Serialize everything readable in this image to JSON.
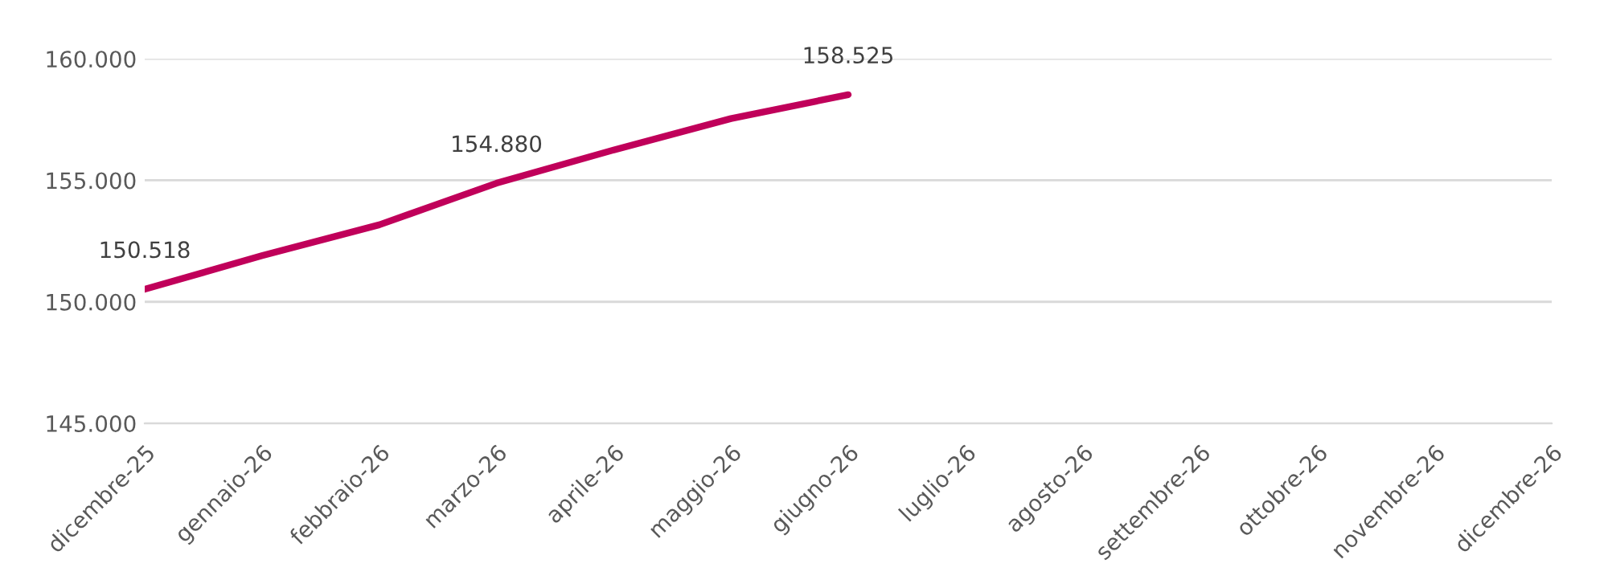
{
  "chart_data": {
    "type": "line",
    "categories": [
      "dicembre-25",
      "gennaio-26",
      "febbraio-26",
      "marzo-26",
      "aprile-26",
      "maggio-26",
      "giugno-26",
      "luglio-26",
      "agosto-26",
      "settembre-26",
      "ottobre-26",
      "novembre-26",
      "dicembre-26"
    ],
    "series": [
      {
        "color": "#c0005a",
        "values": [
          150518,
          151900,
          153170,
          154880,
          156250,
          157540,
          158525,
          null,
          null,
          null,
          null,
          null,
          null
        ],
        "value_labels": [
          "150.518",
          null,
          null,
          "154.880",
          null,
          null,
          "158.525",
          null,
          null,
          null,
          null,
          null,
          null
        ]
      }
    ],
    "ylim": [
      145000,
      160000
    ],
    "yticks": [
      {
        "value": 145000,
        "label": "145.000"
      },
      {
        "value": 150000,
        "label": "150.000"
      },
      {
        "value": 155000,
        "label": "155.000"
      },
      {
        "value": 160000,
        "label": "160.000"
      }
    ],
    "grid": "y",
    "marker": "none",
    "line_style": "solid"
  }
}
